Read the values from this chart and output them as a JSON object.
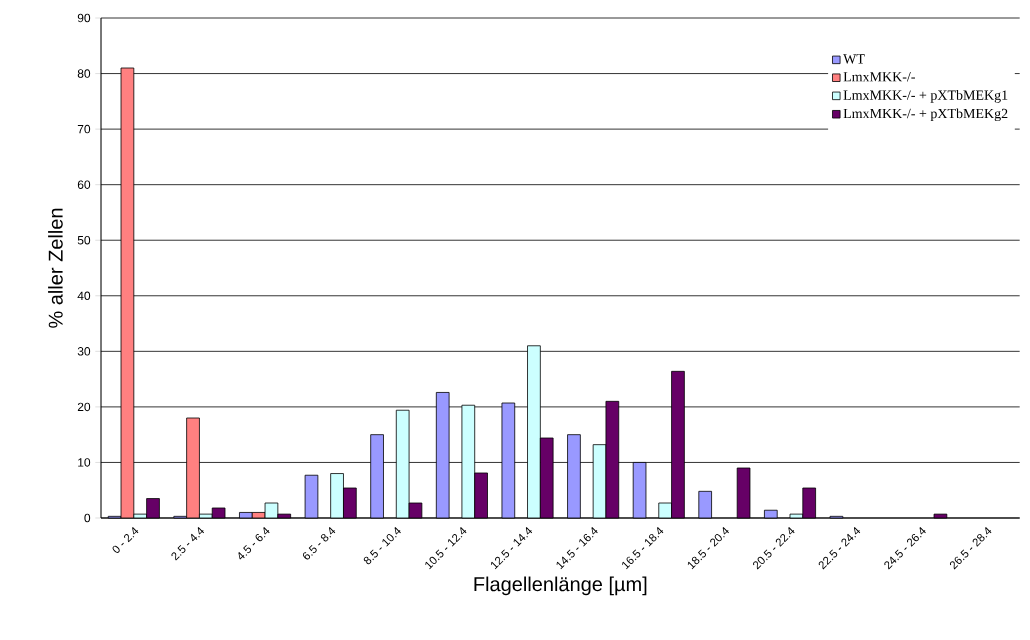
{
  "chart_data": {
    "type": "bar",
    "xlabel": "Flagellenlänge [µm]",
    "ylabel": "% aller Zellen",
    "categories": [
      "0 - 2.4",
      "2.5 - 4.4",
      "4.5 - 6.4",
      "6.5 - 8.4",
      "8.5 - 10.4",
      "10.5 - 12.4",
      "12.5 - 14.4",
      "14.5 - 16.4",
      "16.5 - 18.4",
      "18.5 - 20.4",
      "20.5 - 22.4",
      "22.5 - 24.4",
      "24.5 - 26.4",
      "26.5 - 28.4"
    ],
    "series": [
      {
        "name": "WT",
        "color": "#9999ff",
        "values": [
          0.3,
          0.3,
          1,
          7.7,
          15,
          22.6,
          20.7,
          15,
          10,
          4.8,
          1.4,
          0.3,
          null,
          null
        ]
      },
      {
        "name": "LmxMKK-/-",
        "color": "#ff8080",
        "values": [
          81,
          18,
          1,
          null,
          null,
          null,
          null,
          null,
          null,
          null,
          null,
          null,
          null,
          null
        ]
      },
      {
        "name": "LmxMKK-/- + pXTbMEKg1",
        "color": "#ccffff",
        "values": [
          0.7,
          0.7,
          2.7,
          8,
          19.4,
          20.3,
          31,
          13.2,
          2.7,
          null,
          0.7,
          null,
          null,
          null
        ]
      },
      {
        "name": "LmxMKK-/- + pXTbMEKg2",
        "color": "#660066",
        "values": [
          3.5,
          1.8,
          0.7,
          5.4,
          2.7,
          8.1,
          14.4,
          21,
          26.4,
          9,
          5.4,
          null,
          0.7,
          null
        ]
      }
    ],
    "ylim": [
      0,
      90
    ],
    "yticks": [
      0,
      10,
      20,
      30,
      40,
      50,
      60,
      70,
      80,
      90
    ],
    "grid": "y",
    "legend": "top right"
  }
}
